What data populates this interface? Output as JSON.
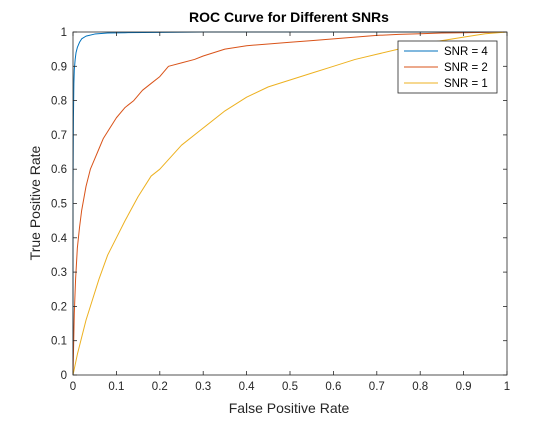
{
  "chart_data": {
    "type": "line",
    "title": "ROC Curve for Different SNRs",
    "xlabel": "False Positive Rate",
    "ylabel": "True Positive Rate",
    "xlim": [
      0,
      1
    ],
    "ylim": [
      0,
      1
    ],
    "xticks": [
      "0",
      "0.1",
      "0.2",
      "0.3",
      "0.4",
      "0.5",
      "0.6",
      "0.7",
      "0.8",
      "0.9",
      "1"
    ],
    "yticks": [
      "0",
      "0.1",
      "0.2",
      "0.3",
      "0.4",
      "0.5",
      "0.6",
      "0.7",
      "0.8",
      "0.9",
      "1"
    ],
    "grid": false,
    "legend_position": "top-right",
    "series": [
      {
        "name": "SNR = 4",
        "color": "#0072BD",
        "x": [
          0,
          0,
          0.001,
          0.002,
          0.003,
          0.005,
          0.007,
          0.01,
          0.015,
          0.02,
          0.03,
          0.05,
          0.08,
          0.12,
          0.2,
          0.3,
          0.5,
          0.7,
          1.0
        ],
        "y": [
          0,
          0.55,
          0.75,
          0.85,
          0.89,
          0.92,
          0.94,
          0.955,
          0.97,
          0.98,
          0.988,
          0.994,
          0.997,
          0.998,
          0.999,
          1.0,
          1.0,
          1.0,
          1.0
        ]
      },
      {
        "name": "SNR = 2",
        "color": "#D95319",
        "x": [
          0,
          0.003,
          0.006,
          0.01,
          0.015,
          0.02,
          0.03,
          0.04,
          0.05,
          0.06,
          0.07,
          0.08,
          0.09,
          0.1,
          0.12,
          0.14,
          0.16,
          0.18,
          0.2,
          0.22,
          0.25,
          0.28,
          0.3,
          0.35,
          0.4,
          0.45,
          0.5,
          0.55,
          0.6,
          0.65,
          0.7,
          0.75,
          0.8,
          0.85,
          0.9,
          0.95,
          1.0
        ],
        "y": [
          0,
          0.18,
          0.28,
          0.37,
          0.43,
          0.48,
          0.55,
          0.6,
          0.63,
          0.66,
          0.69,
          0.71,
          0.73,
          0.75,
          0.78,
          0.8,
          0.83,
          0.85,
          0.87,
          0.9,
          0.91,
          0.92,
          0.93,
          0.95,
          0.96,
          0.965,
          0.97,
          0.975,
          0.98,
          0.985,
          0.99,
          0.993,
          0.995,
          0.997,
          0.998,
          0.999,
          1.0
        ]
      },
      {
        "name": "SNR = 1",
        "color": "#EDB120",
        "x": [
          0,
          0.01,
          0.02,
          0.03,
          0.04,
          0.06,
          0.08,
          0.1,
          0.12,
          0.15,
          0.18,
          0.2,
          0.25,
          0.3,
          0.35,
          0.4,
          0.45,
          0.5,
          0.55,
          0.6,
          0.65,
          0.7,
          0.75,
          0.8,
          0.85,
          0.9,
          0.95,
          1.0
        ],
        "y": [
          0,
          0.06,
          0.11,
          0.16,
          0.2,
          0.28,
          0.35,
          0.4,
          0.45,
          0.52,
          0.58,
          0.6,
          0.67,
          0.72,
          0.77,
          0.81,
          0.84,
          0.86,
          0.88,
          0.9,
          0.92,
          0.935,
          0.95,
          0.965,
          0.975,
          0.985,
          0.995,
          1.0
        ]
      }
    ]
  }
}
